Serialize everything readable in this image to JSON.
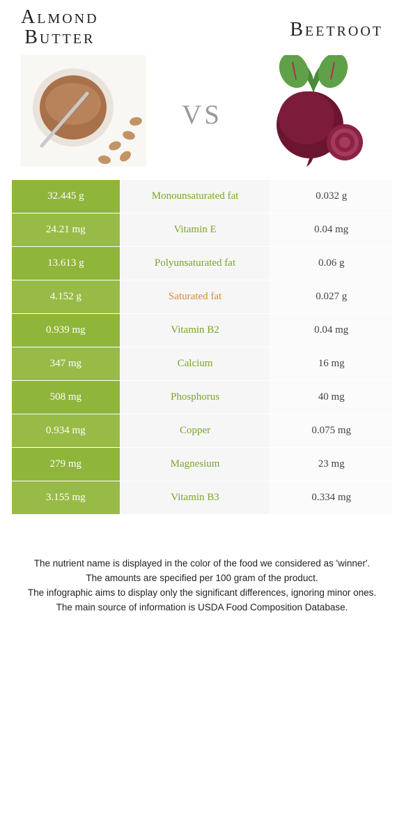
{
  "header": {
    "left_title_line1": "Almond",
    "left_title_line2": "Butter",
    "right_title": "Beetroot",
    "vs_label": "vs"
  },
  "colors": {
    "row_left_a": "#8fb53b",
    "row_left_b": "#98bb47",
    "mid_green": "#7ba428",
    "mid_orange": "#d98a2b",
    "mid_bg": "#f6f6f6",
    "right_bg": "#fbfbfb",
    "vs_text": "#999999",
    "title_text": "#222222"
  },
  "rows": [
    {
      "left": "32.445 g",
      "label": "Monounsaturated fat",
      "right": "0.032 g",
      "winner": "left"
    },
    {
      "left": "24.21 mg",
      "label": "Vitamin E",
      "right": "0.04 mg",
      "winner": "left"
    },
    {
      "left": "13.613 g",
      "label": "Polyunsaturated fat",
      "right": "0.06 g",
      "winner": "left"
    },
    {
      "left": "4.152 g",
      "label": "Saturated fat",
      "right": "0.027 g",
      "winner": "right"
    },
    {
      "left": "0.939 mg",
      "label": "Vitamin B2",
      "right": "0.04 mg",
      "winner": "left"
    },
    {
      "left": "347 mg",
      "label": "Calcium",
      "right": "16 mg",
      "winner": "left"
    },
    {
      "left": "508 mg",
      "label": "Phosphorus",
      "right": "40 mg",
      "winner": "left"
    },
    {
      "left": "0.934 mg",
      "label": "Copper",
      "right": "0.075 mg",
      "winner": "left"
    },
    {
      "left": "279 mg",
      "label": "Magnesium",
      "right": "23 mg",
      "winner": "left"
    },
    {
      "left": "3.155 mg",
      "label": "Vitamin B3",
      "right": "0.334 mg",
      "winner": "left"
    }
  ],
  "notes": {
    "line1": "The nutrient name is displayed in the color of the food we considered as 'winner'.",
    "line2": "The amounts are specified per 100 gram of the product.",
    "line3": "The infographic aims to display only the significant differences, ignoring minor ones.",
    "line4": "The main source of information is USDA Food Composition Database."
  },
  "images": {
    "left_alt": "almond-butter-photo",
    "right_alt": "beetroot-photo"
  }
}
